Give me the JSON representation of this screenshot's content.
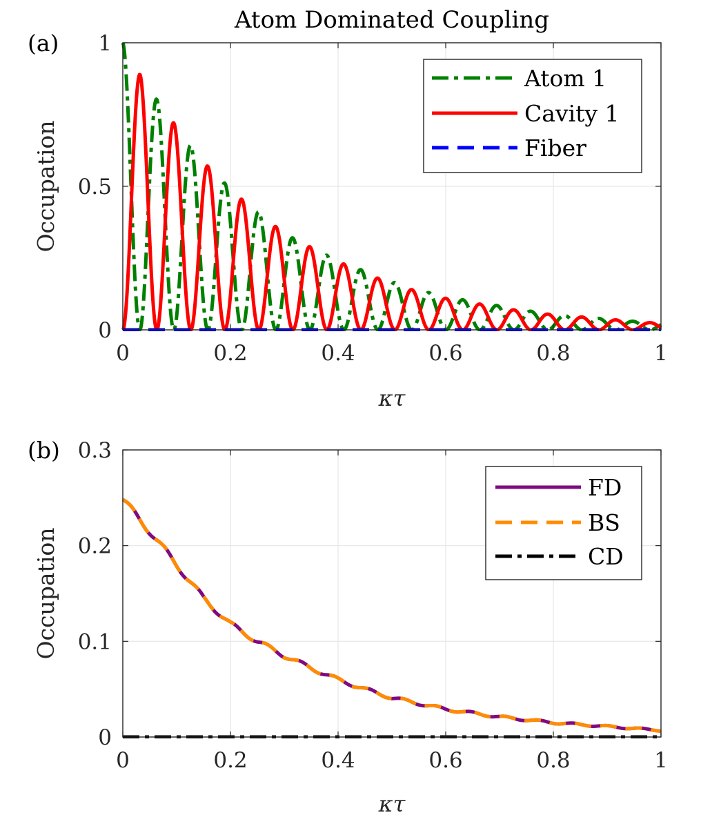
{
  "chart_data": [
    {
      "panel": "(a)",
      "type": "line",
      "title": "Atom Dominated Coupling",
      "xlabel": "κτ",
      "ylabel": "Occupation",
      "xlim": [
        0,
        1
      ],
      "ylim": [
        0,
        1
      ],
      "xticks": [
        0,
        0.2,
        0.4,
        0.6,
        0.8,
        1
      ],
      "xtick_labels": [
        "0",
        "0.2",
        "0.4",
        "0.6",
        "0.8",
        "1"
      ],
      "yticks": [
        0,
        0.5,
        1
      ],
      "ytick_labels": [
        "0",
        "0.5",
        "1"
      ],
      "grid": true,
      "legend_position": "top-right",
      "series": [
        {
          "name": "Atom 1",
          "color": "#008000",
          "style": "dashdot",
          "model": "oscillating decay, peak 1 at 0, ~16 cycles",
          "peaks": [
            [
              0.0,
              1.0
            ],
            [
              0.064,
              0.8
            ],
            [
              0.127,
              0.64
            ],
            [
              0.19,
              0.51
            ],
            [
              0.253,
              0.41
            ],
            [
              0.316,
              0.32
            ],
            [
              0.379,
              0.26
            ],
            [
              0.442,
              0.21
            ],
            [
              0.505,
              0.165
            ],
            [
              0.568,
              0.13
            ],
            [
              0.631,
              0.105
            ],
            [
              0.695,
              0.085
            ],
            [
              0.758,
              0.065
            ],
            [
              0.821,
              0.05
            ],
            [
              0.884,
              0.04
            ],
            [
              0.947,
              0.03
            ],
            [
              1.0,
              0.025
            ]
          ]
        },
        {
          "name": "Cavity 1",
          "color": "#ff0000",
          "style": "solid",
          "model": "oscillating decay, starts 0, ~16 cycles",
          "peaks": [
            [
              0.032,
              0.89
            ],
            [
              0.095,
              0.72
            ],
            [
              0.158,
              0.57
            ],
            [
              0.221,
              0.455
            ],
            [
              0.284,
              0.36
            ],
            [
              0.347,
              0.29
            ],
            [
              0.41,
              0.23
            ],
            [
              0.474,
              0.18
            ],
            [
              0.537,
              0.14
            ],
            [
              0.6,
              0.11
            ],
            [
              0.663,
              0.09
            ],
            [
              0.726,
              0.07
            ],
            [
              0.789,
              0.055
            ],
            [
              0.852,
              0.045
            ],
            [
              0.915,
              0.035
            ],
            [
              0.978,
              0.025
            ]
          ]
        },
        {
          "name": "Fiber",
          "color": "#0000ff",
          "style": "dashed",
          "x": [
            0,
            1
          ],
          "y": [
            0,
            0
          ]
        }
      ]
    },
    {
      "panel": "(b)",
      "type": "line",
      "title": "",
      "xlabel": "κτ",
      "ylabel": "Occupation",
      "xlim": [
        0,
        1
      ],
      "ylim": [
        0,
        0.3
      ],
      "xticks": [
        0,
        0.2,
        0.4,
        0.6,
        0.8,
        1
      ],
      "xtick_labels": [
        "0",
        "0.2",
        "0.4",
        "0.6",
        "0.8",
        "1"
      ],
      "yticks": [
        0,
        0.1,
        0.2,
        0.3
      ],
      "ytick_labels": [
        "0",
        "0.1",
        "0.2",
        "0.3"
      ],
      "grid": true,
      "legend_position": "top-right",
      "series": [
        {
          "name": "FD",
          "color": "#7e0b80",
          "style": "solid",
          "x": [
            0,
            0.05,
            0.1,
            0.15,
            0.2,
            0.25,
            0.3,
            0.35,
            0.4,
            0.45,
            0.5,
            0.6,
            0.7,
            0.8,
            0.9,
            1.0
          ],
          "y": [
            0.248,
            0.215,
            0.18,
            0.145,
            0.118,
            0.1,
            0.085,
            0.072,
            0.06,
            0.05,
            0.041,
            0.029,
            0.021,
            0.015,
            0.011,
            0.007
          ]
        },
        {
          "name": "BS",
          "color": "#ff8c00",
          "style": "dashed",
          "x": [
            0,
            0.05,
            0.1,
            0.15,
            0.2,
            0.25,
            0.3,
            0.35,
            0.4,
            0.45,
            0.5,
            0.6,
            0.7,
            0.8,
            0.9,
            1.0
          ],
          "y": [
            0.248,
            0.215,
            0.18,
            0.145,
            0.118,
            0.1,
            0.085,
            0.072,
            0.06,
            0.05,
            0.041,
            0.029,
            0.021,
            0.015,
            0.011,
            0.007
          ]
        },
        {
          "name": "CD",
          "color": "#000000",
          "style": "dashdot",
          "x": [
            0,
            1
          ],
          "y": [
            0,
            0
          ]
        }
      ]
    }
  ]
}
